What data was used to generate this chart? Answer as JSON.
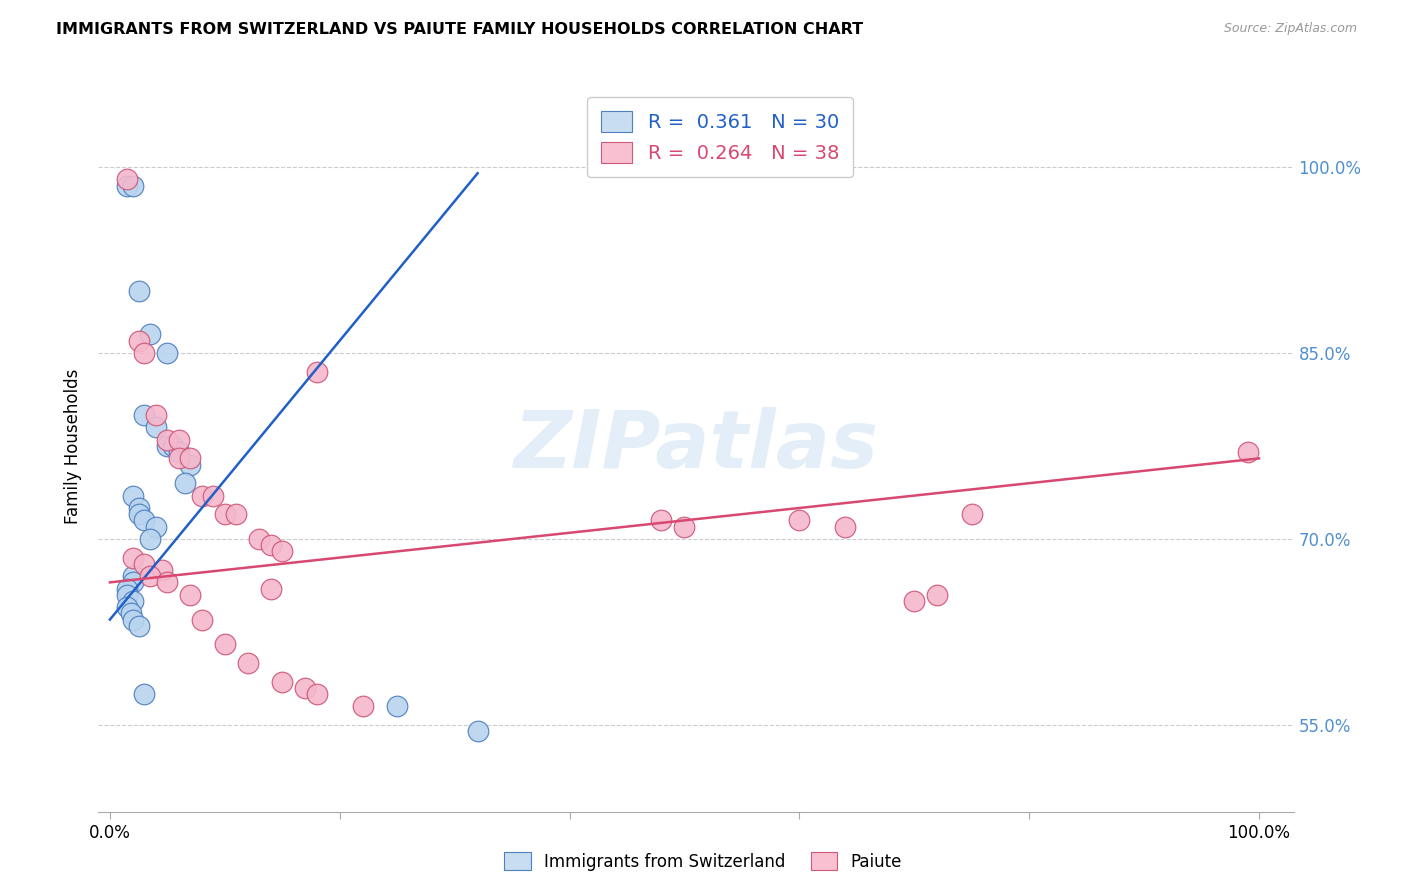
{
  "title": "IMMIGRANTS FROM SWITZERLAND VS PAIUTE FAMILY HOUSEHOLDS CORRELATION CHART",
  "source": "Source: ZipAtlas.com",
  "ylabel": "Family Households",
  "y_ticks_pct": [
    55.0,
    70.0,
    85.0,
    100.0
  ],
  "y_tick_labels": [
    "55.0%",
    "70.0%",
    "85.0%",
    "100.0%"
  ],
  "blue_R": 0.361,
  "blue_N": 30,
  "pink_R": 0.264,
  "pink_N": 38,
  "watermark": "ZIPatlas",
  "blue_scatter_color": "#b8d4ee",
  "blue_edge_color": "#5080c0",
  "pink_scatter_color": "#f4b8cc",
  "pink_edge_color": "#d05878",
  "blue_line_color": "#2060c8",
  "pink_line_color": "#d84870",
  "legend_blue_face": "#c8ddf0",
  "legend_pink_face": "#f8c0d0",
  "blue_points_x": [
    1.5,
    2.0,
    2.5,
    3.5,
    5.0,
    3.0,
    4.0,
    5.0,
    5.5,
    6.0,
    7.0,
    6.5,
    2.0,
    2.5,
    2.5,
    3.0,
    4.0,
    3.5,
    2.0,
    2.0,
    1.5,
    1.5,
    2.0,
    1.5,
    1.8,
    2.0,
    2.5,
    3.0,
    25.0,
    32.0
  ],
  "blue_points_y": [
    98.5,
    98.5,
    90.0,
    86.5,
    85.0,
    80.0,
    79.0,
    77.5,
    77.5,
    77.0,
    76.0,
    74.5,
    73.5,
    72.5,
    72.0,
    71.5,
    71.0,
    70.0,
    67.0,
    66.5,
    66.0,
    65.5,
    65.0,
    64.5,
    64.0,
    63.5,
    63.0,
    57.5,
    56.5,
    54.5
  ],
  "pink_points_x": [
    1.5,
    2.5,
    3.0,
    4.0,
    5.0,
    6.0,
    6.0,
    7.0,
    8.0,
    9.0,
    10.0,
    11.0,
    13.0,
    14.0,
    15.0,
    2.0,
    3.0,
    4.5,
    3.5,
    5.0,
    14.0,
    18.0,
    48.0,
    50.0,
    60.0,
    64.0,
    70.0,
    72.0,
    75.0,
    99.0,
    7.0,
    8.0,
    10.0,
    12.0,
    15.0,
    17.0,
    18.0,
    22.0
  ],
  "pink_points_y": [
    99.0,
    86.0,
    85.0,
    80.0,
    78.0,
    78.0,
    76.5,
    76.5,
    73.5,
    73.5,
    72.0,
    72.0,
    70.0,
    69.5,
    69.0,
    68.5,
    68.0,
    67.5,
    67.0,
    66.5,
    66.0,
    83.5,
    71.5,
    71.0,
    71.5,
    71.0,
    65.0,
    65.5,
    72.0,
    77.0,
    65.5,
    63.5,
    61.5,
    60.0,
    58.5,
    58.0,
    57.5,
    56.5
  ],
  "blue_line_x": [
    0.0,
    32.0
  ],
  "blue_line_y": [
    63.5,
    99.5
  ],
  "pink_line_x": [
    0.0,
    100.0
  ],
  "pink_line_y": [
    66.5,
    76.5
  ],
  "xlim": [
    -1.0,
    103.0
  ],
  "ylim": [
    48.0,
    107.0
  ],
  "xticks": [
    0.0,
    20.0,
    40.0,
    60.0,
    80.0,
    100.0
  ],
  "xtick_labels": [
    "0.0%",
    "",
    "",
    "",
    "",
    "100.0%"
  ]
}
